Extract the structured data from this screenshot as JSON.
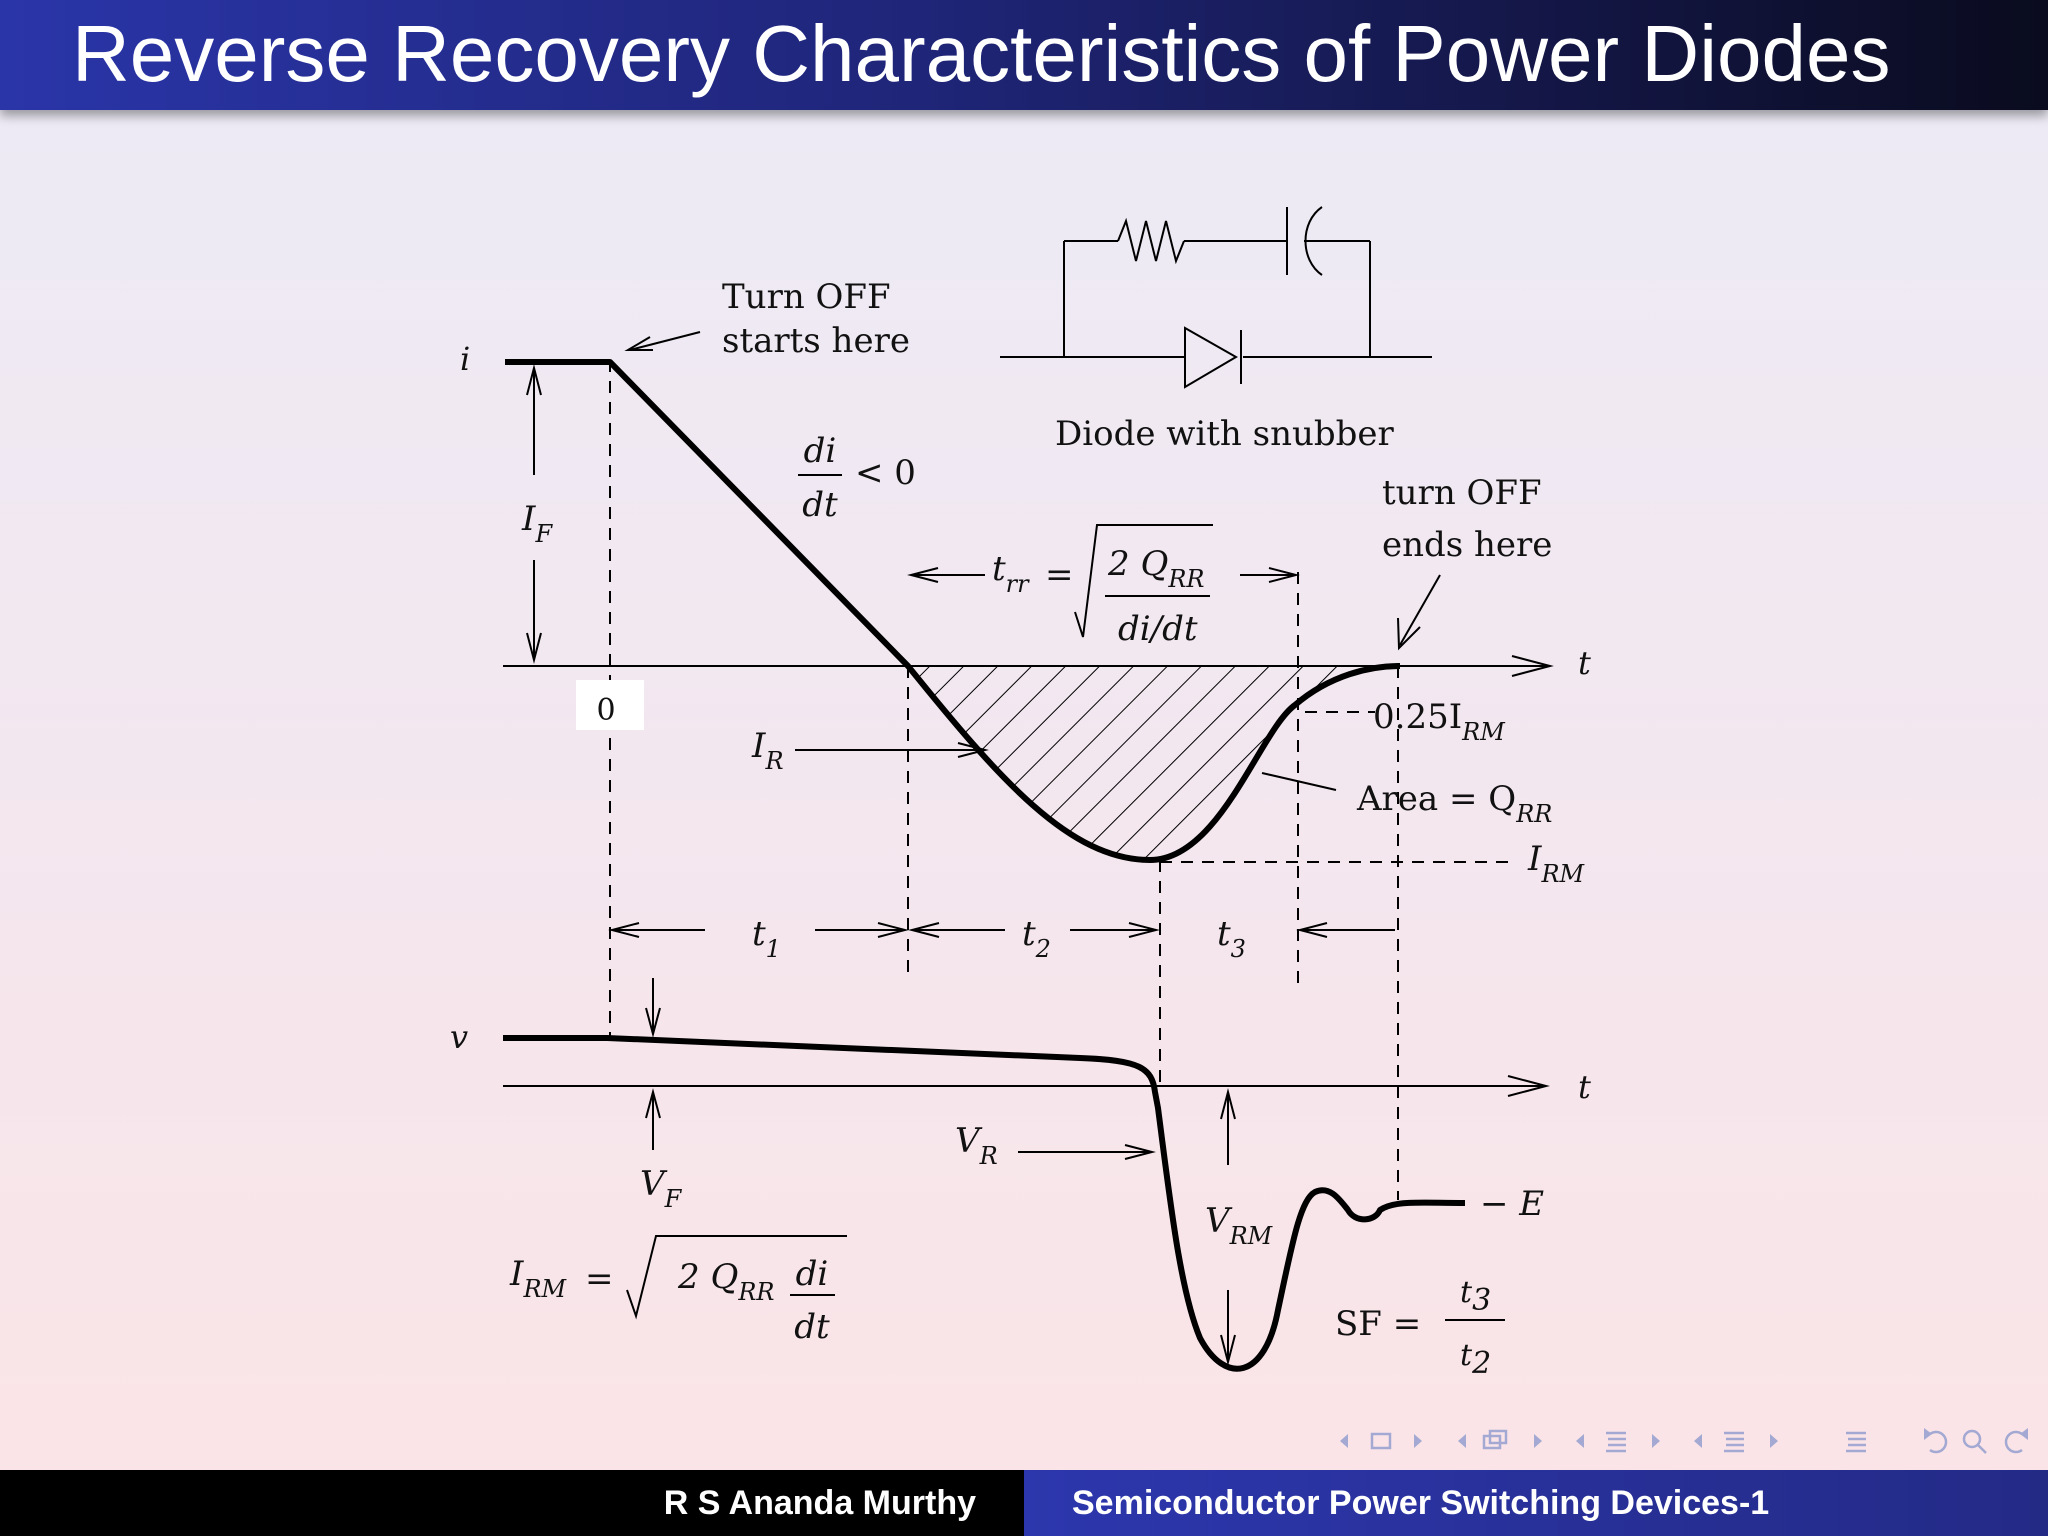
{
  "title": "Reverse Recovery Characteristics of Power Diodes",
  "footer": {
    "author": "R S Ananda Murthy",
    "course": "Semiconductor Power Switching Devices-1"
  },
  "diagram": {
    "axis_i": "i",
    "axis_v": "v",
    "axis_t": "t",
    "origin": "0",
    "turn_off_start": [
      "Turn OFF",
      "starts here"
    ],
    "turn_off_end": [
      "turn OFF",
      "ends here"
    ],
    "snubber_caption": "Diode with snubber",
    "di_num": "di",
    "di_den": "dt",
    "di_rel": "< 0",
    "I_F": "I",
    "I_F_sub": "F",
    "trr_lhs": "t",
    "trr_sub": "rr",
    "trr_eq": "=",
    "trr_num": "2 Q",
    "trr_num_sub": "RR",
    "trr_den": "di/dt",
    "I_R": "I",
    "I_R_sub": "R",
    "pct": "0.25I",
    "pct_sub": "RM",
    "area": "Area = Q",
    "area_sub": "RR",
    "I_RM": "I",
    "I_RM_sub": "RM",
    "t1": "t",
    "t1_sub": "1",
    "t2": "t",
    "t2_sub": "2",
    "t3": "t",
    "t3_sub": "3",
    "V_F": "V",
    "V_F_sub": "F",
    "V_R": "V",
    "V_R_sub": "R",
    "V_RM": "V",
    "V_RM_sub": "RM",
    "minus_E": "− E",
    "irm_lhs": "I",
    "irm_lhs_sub": "RM",
    "irm_eq": "=",
    "irm_q": "2 Q",
    "irm_q_sub": "RR",
    "irm_di": "di",
    "irm_dt": "dt",
    "sf": "SF =",
    "sf_num": "t",
    "sf_num_sub": "3",
    "sf_den": "t",
    "sf_den_sub": "2"
  }
}
